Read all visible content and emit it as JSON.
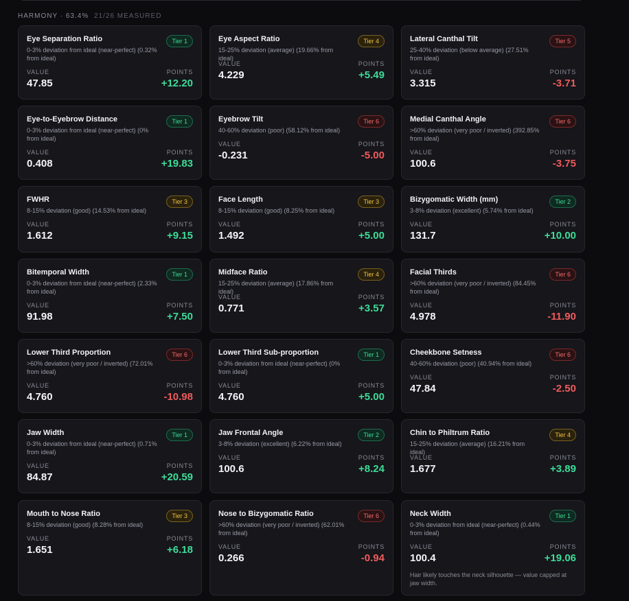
{
  "header": {
    "title": "HARMONY · 63.4%",
    "measured": "21/26 MEASURED"
  },
  "labels": {
    "value": "VALUE",
    "points": "POINTS"
  },
  "cards": [
    {
      "title": "Eye Separation Ratio",
      "desc": "0-3% deviation from ideal (near-perfect) (0.32% from ideal)",
      "tier": "Tier 1",
      "tier_color": "green",
      "value": "47.85",
      "points": "+12.20",
      "sign": "pos"
    },
    {
      "title": "Eye Aspect Ratio",
      "desc": "15-25% deviation (average) (19.66% from ideal)",
      "tier": "Tier 4",
      "tier_color": "yellow",
      "value": "4.229",
      "points": "+5.49",
      "sign": "pos"
    },
    {
      "title": "Lateral Canthal Tilt",
      "desc": "25-40% deviation (below average) (27.51% from ideal)",
      "tier": "Tier 5",
      "tier_color": "red",
      "value": "3.315",
      "points": "-3.71",
      "sign": "neg"
    },
    {
      "title": "Eye-to-Eyebrow Distance",
      "desc": "0-3% deviation from ideal (near-perfect) (0% from ideal)",
      "tier": "Tier 1",
      "tier_color": "green",
      "value": "0.408",
      "points": "+19.83",
      "sign": "pos"
    },
    {
      "title": "Eyebrow Tilt",
      "desc": "40-60% deviation (poor) (58.12% from ideal)",
      "tier": "Tier 6",
      "tier_color": "red",
      "value": "-0.231",
      "points": "-5.00",
      "sign": "neg"
    },
    {
      "title": "Medial Canthal Angle",
      "desc": ">60% deviation (very poor / inverted) (392.85% from ideal)",
      "tier": "Tier 6",
      "tier_color": "red",
      "value": "100.6",
      "points": "-3.75",
      "sign": "neg"
    },
    {
      "title": "FWHR",
      "desc": "8-15% deviation (good) (14.53% from ideal)",
      "tier": "Tier 3",
      "tier_color": "yellow",
      "value": "1.612",
      "points": "+9.15",
      "sign": "pos"
    },
    {
      "title": "Face Length",
      "desc": "8-15% deviation (good) (8.25% from ideal)",
      "tier": "Tier 3",
      "tier_color": "yellow",
      "value": "1.492",
      "points": "+5.00",
      "sign": "pos"
    },
    {
      "title": "Bizygomatic Width (mm)",
      "desc": "3-8% deviation (excellent) (5.74% from ideal)",
      "tier": "Tier 2",
      "tier_color": "green",
      "value": "131.7",
      "points": "+10.00",
      "sign": "pos"
    },
    {
      "title": "Bitemporal Width",
      "desc": "0-3% deviation from ideal (near-perfect) (2.33% from ideal)",
      "tier": "Tier 1",
      "tier_color": "green",
      "value": "91.98",
      "points": "+7.50",
      "sign": "pos"
    },
    {
      "title": "Midface Ratio",
      "desc": "15-25% deviation (average) (17.86% from ideal)",
      "tier": "Tier 4",
      "tier_color": "yellow",
      "value": "0.771",
      "points": "+3.57",
      "sign": "pos"
    },
    {
      "title": "Facial Thirds",
      "desc": ">60% deviation (very poor / inverted) (84.45% from ideal)",
      "tier": "Tier 6",
      "tier_color": "red",
      "value": "4.978",
      "points": "-11.90",
      "sign": "neg"
    },
    {
      "title": "Lower Third Proportion",
      "desc": ">60% deviation (very poor / inverted) (72.01% from ideal)",
      "tier": "Tier 6",
      "tier_color": "red",
      "value": "4.760",
      "points": "-10.98",
      "sign": "neg"
    },
    {
      "title": "Lower Third Sub-proportion",
      "desc": "0-3% deviation from ideal (near-perfect) (0% from ideal)",
      "tier": "Tier 1",
      "tier_color": "green",
      "value": "4.760",
      "points": "+5.00",
      "sign": "pos"
    },
    {
      "title": "Cheekbone Setness",
      "desc": "40-60% deviation (poor) (40.94% from ideal)",
      "tier": "Tier 6",
      "tier_color": "red",
      "value": "47.84",
      "points": "-2.50",
      "sign": "neg"
    },
    {
      "title": "Jaw Width",
      "desc": "0-3% deviation from ideal (near-perfect) (0.71% from ideal)",
      "tier": "Tier 1",
      "tier_color": "green",
      "value": "84.87",
      "points": "+20.59",
      "sign": "pos"
    },
    {
      "title": "Jaw Frontal Angle",
      "desc": "3-8% deviation (excellent) (6.22% from ideal)",
      "tier": "Tier 2",
      "tier_color": "green",
      "value": "100.6",
      "points": "+8.24",
      "sign": "pos"
    },
    {
      "title": "Chin to Philtrum Ratio",
      "desc": "15-25% deviation (average) (16.21% from ideal)",
      "tier": "Tier 4",
      "tier_color": "yellow",
      "value": "1.677",
      "points": "+3.89",
      "sign": "pos"
    },
    {
      "title": "Mouth to Nose Ratio",
      "desc": "8-15% deviation (good) (8.28% from ideal)",
      "tier": "Tier 3",
      "tier_color": "yellow",
      "value": "1.651",
      "points": "+6.18",
      "sign": "pos"
    },
    {
      "title": "Nose to Bizygomatic Ratio",
      "desc": ">60% deviation (very poor / inverted) (62.01% from ideal)",
      "tier": "Tier 6",
      "tier_color": "red",
      "value": "0.266",
      "points": "-0.94",
      "sign": "neg"
    },
    {
      "title": "Neck Width",
      "desc": "0-3% deviation from ideal (near-perfect) (0.44% from ideal)",
      "tier": "Tier 1",
      "tier_color": "green",
      "value": "100.4",
      "points": "+19.06",
      "sign": "pos",
      "note": "Hair likely touches the neck silhouette — value capped at jaw width."
    }
  ]
}
